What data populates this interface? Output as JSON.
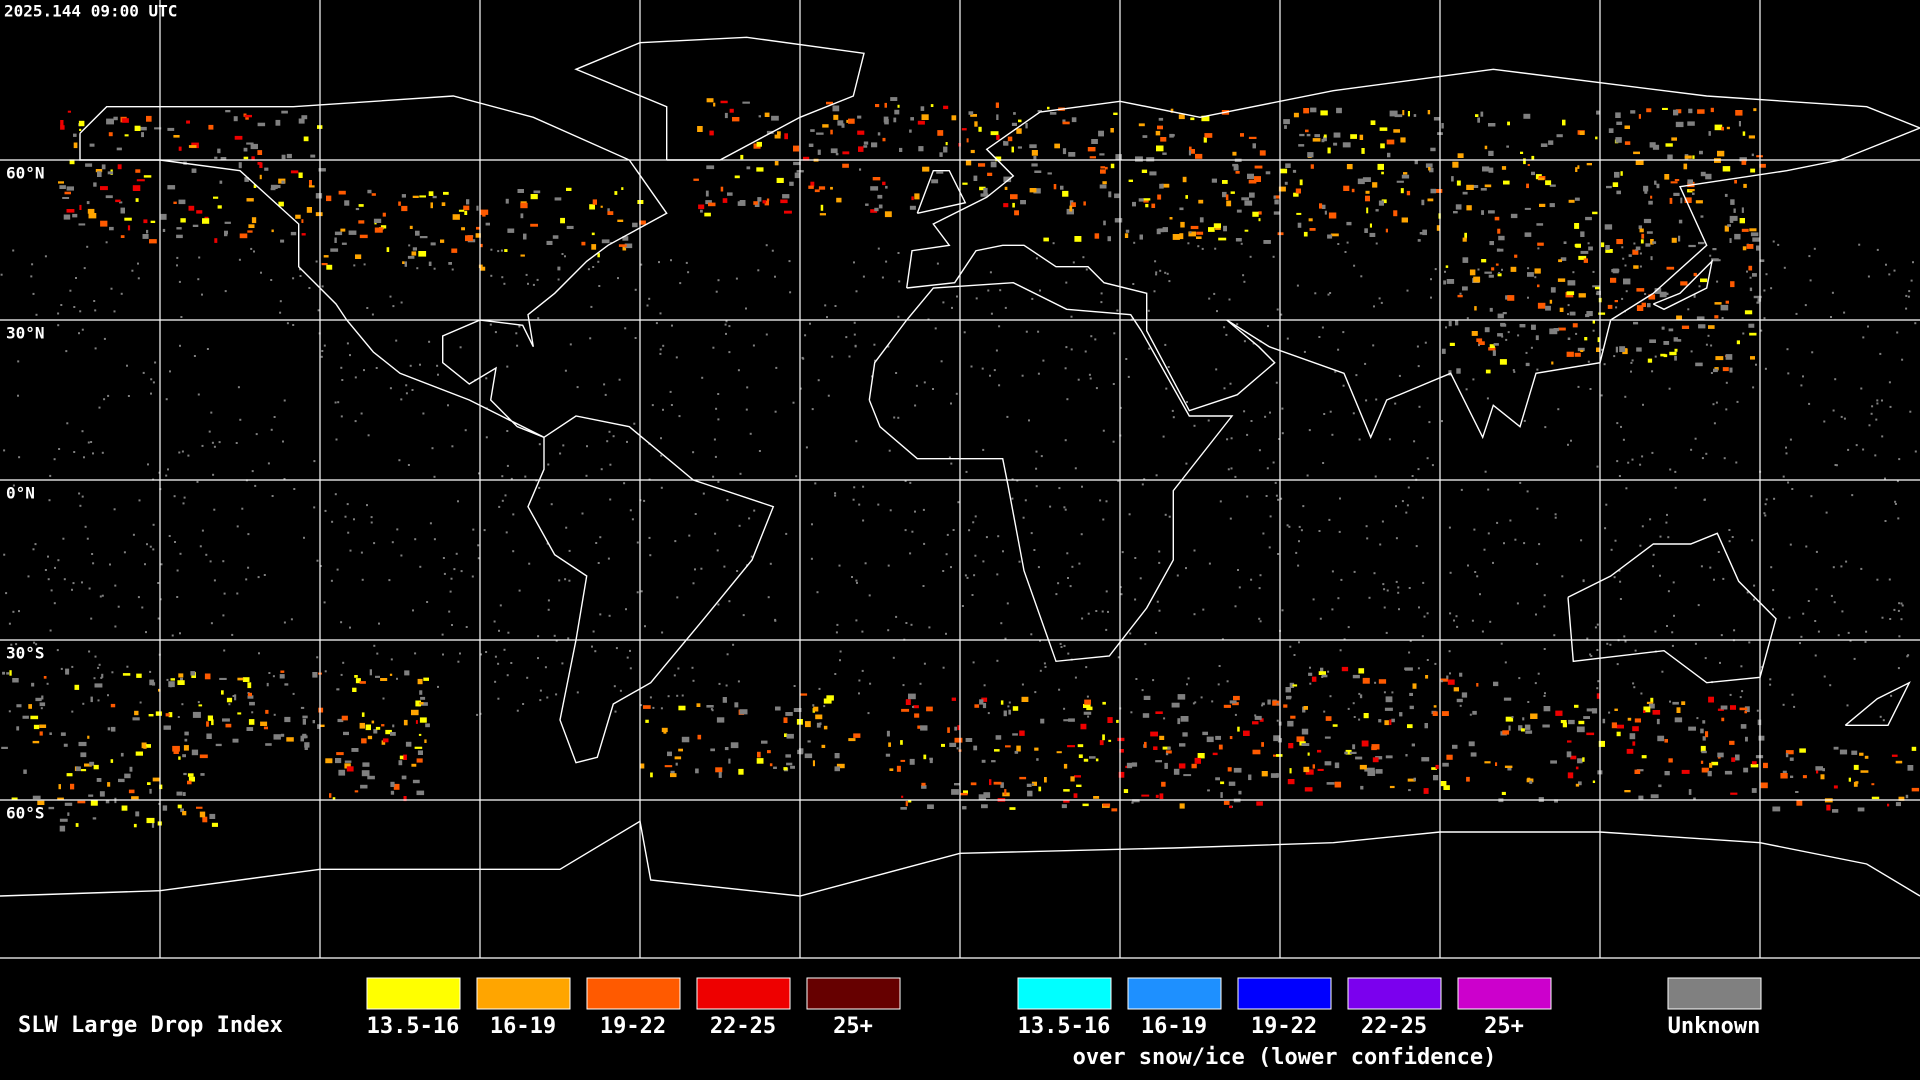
{
  "header": {
    "timestamp": "2025.144 09:00 UTC"
  },
  "map": {
    "latitude_labels": [
      "60°N",
      "30°N",
      "0°N",
      "30°S",
      "60°S"
    ]
  },
  "legend": {
    "title": "SLW Large Drop Index",
    "groups": [
      {
        "items": [
          {
            "label": "13.5-16",
            "color": "#ffff00"
          },
          {
            "label": "16-19",
            "color": "#ffa500"
          },
          {
            "label": "19-22",
            "color": "#ff5a00"
          },
          {
            "label": "22-25",
            "color": "#ee0000"
          },
          {
            "label": "25+",
            "color": "#660000"
          }
        ]
      },
      {
        "items": [
          {
            "label": "13.5-16",
            "color": "#00ffff"
          },
          {
            "label": "16-19",
            "color": "#1e90ff"
          },
          {
            "label": "19-22",
            "color": "#0000ff"
          },
          {
            "label": "22-25",
            "color": "#7b00ee"
          },
          {
            "label": "25+",
            "color": "#cc00cc"
          }
        ],
        "note": "over snow/ice (lower confidence)"
      },
      {
        "items": [
          {
            "label": "Unknown",
            "color": "#808080"
          }
        ]
      }
    ]
  }
}
